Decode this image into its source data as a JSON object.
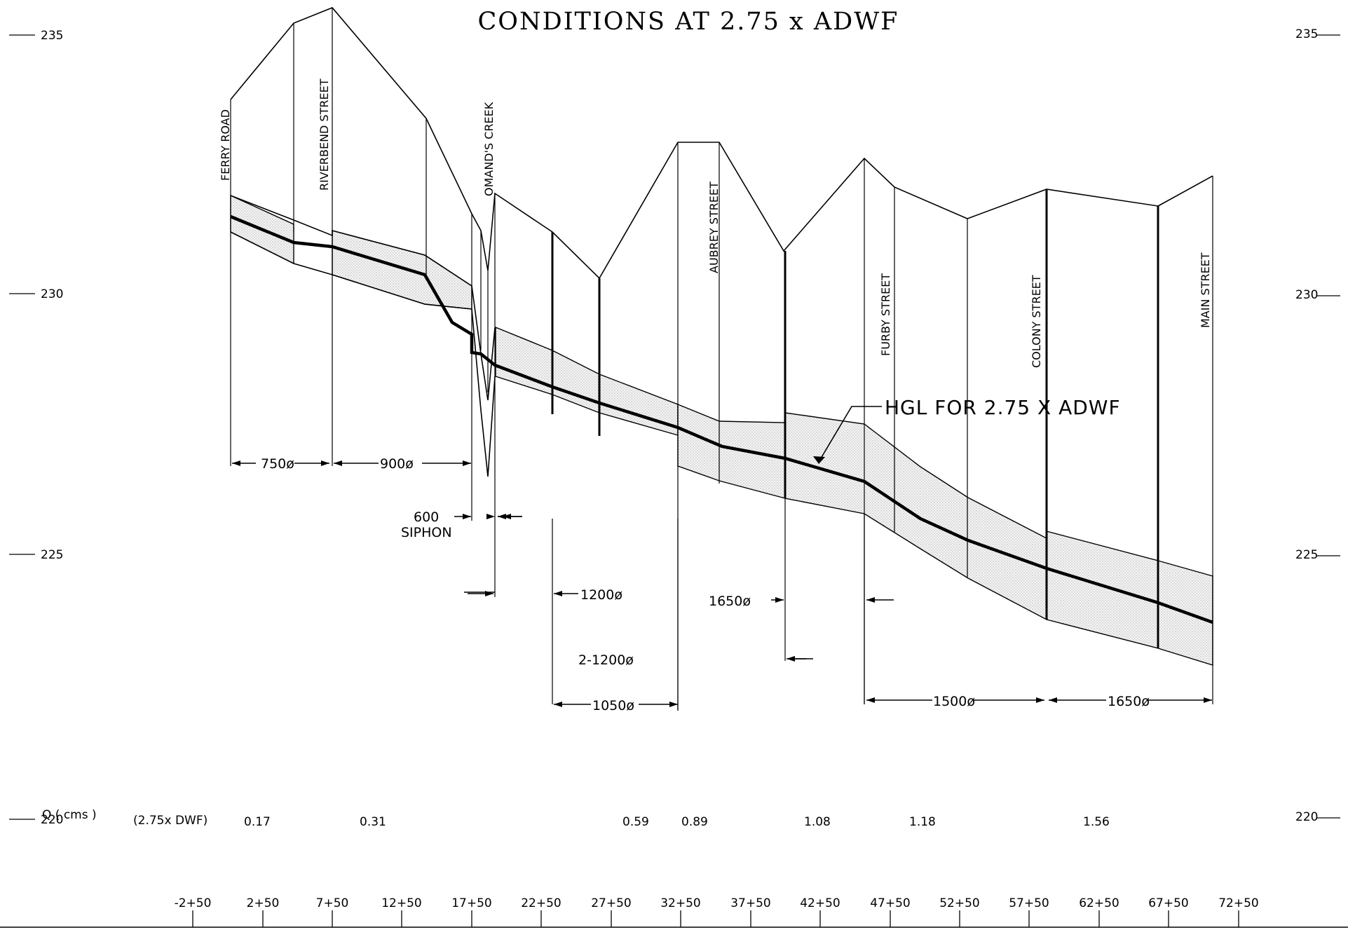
{
  "title": "CONDITIONS AT 2.75 x ADWF",
  "elevation_labels": [
    "235",
    "230",
    "225",
    "220"
  ],
  "streets": [
    {
      "name": "FERRY ROAD"
    },
    {
      "name": "RIVERBEND STREET"
    },
    {
      "name": "OMAND'S CREEK"
    },
    {
      "name": "AUBREY STREET"
    },
    {
      "name": "FURBY STREET"
    },
    {
      "name": "COLONY STREET"
    },
    {
      "name": "MAIN STREET"
    }
  ],
  "hgl_label": "HGL FOR 2.75 X ADWF",
  "pipes": [
    {
      "label": "750ø"
    },
    {
      "label": "900ø"
    },
    {
      "label": "600"
    },
    {
      "label": "SIPHON"
    },
    {
      "label": "1200ø"
    },
    {
      "label": "1650ø"
    },
    {
      "label": "2-1200ø"
    },
    {
      "label": "1050ø"
    },
    {
      "label": "1500ø"
    },
    {
      "label": "1650ø"
    }
  ],
  "flow_row": {
    "header": "Q ( cms )",
    "subheader": "(2.75x DWF)",
    "values": [
      "0.17",
      "0.31",
      "0.59",
      "0.89",
      "1.08",
      "1.18",
      "1.56"
    ]
  },
  "stations": [
    "-2+50",
    "2+50",
    "7+50",
    "12+50",
    "17+50",
    "22+50",
    "27+50",
    "32+50",
    "37+50",
    "42+50",
    "47+50",
    "52+50",
    "57+50",
    "62+50",
    "67+50",
    "72+50"
  ],
  "colors": {
    "line": "#000000",
    "fill": "#e4e4e4"
  }
}
